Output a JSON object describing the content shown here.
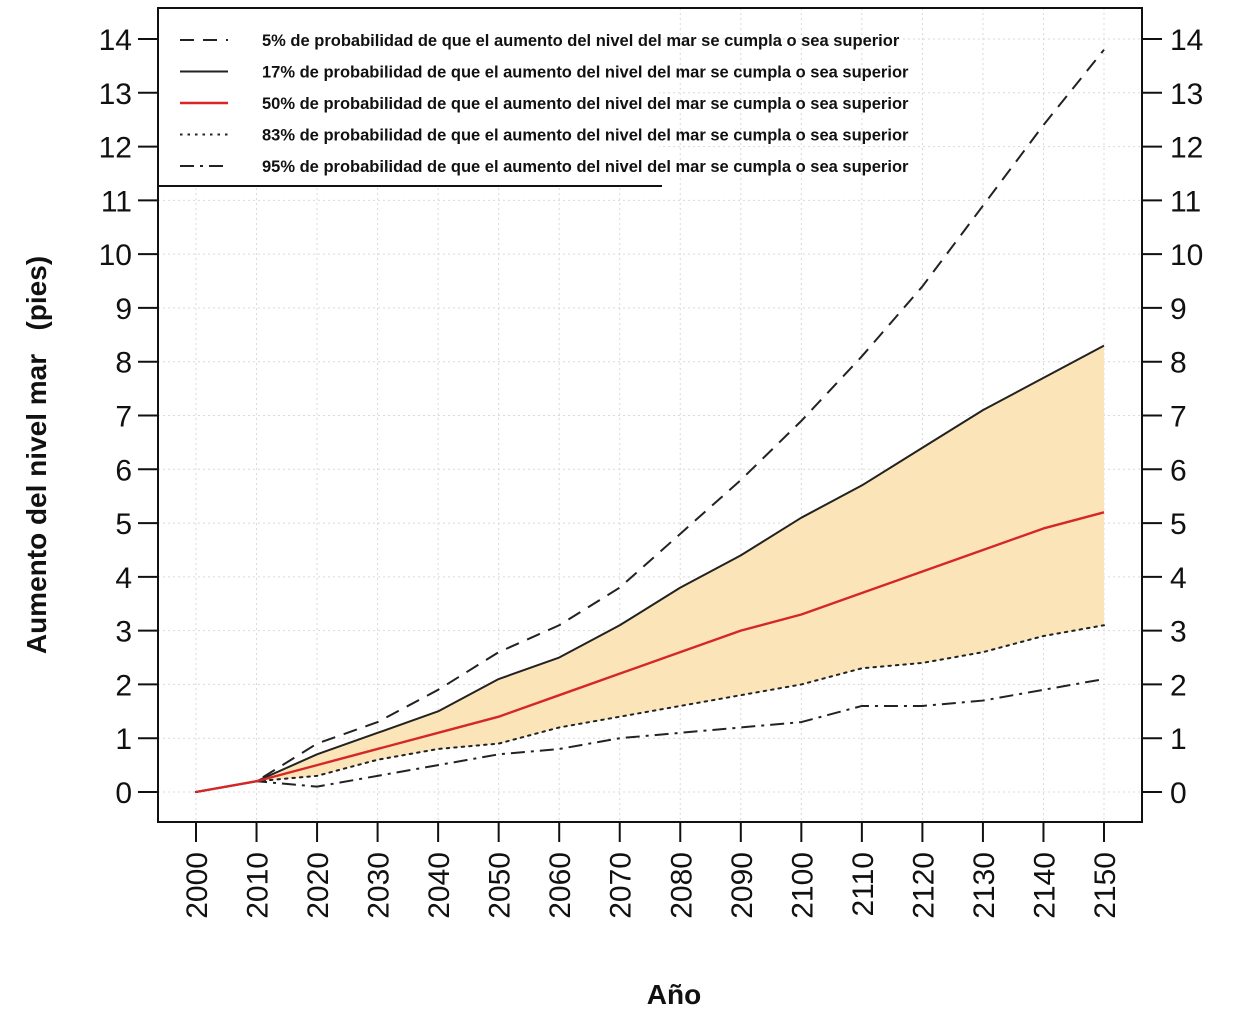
{
  "chart_data": {
    "type": "line",
    "title": "",
    "xlabel": "Año",
    "ylabel": "Aumento del nivel mar   (pies)",
    "xlim": [
      2000,
      2150
    ],
    "ylim": [
      0,
      14
    ],
    "x_ticks": [
      2000,
      2010,
      2020,
      2030,
      2040,
      2050,
      2060,
      2070,
      2080,
      2090,
      2100,
      2110,
      2120,
      2130,
      2140,
      2150
    ],
    "y_ticks": [
      0,
      1,
      2,
      3,
      4,
      5,
      6,
      7,
      8,
      9,
      10,
      11,
      12,
      13,
      14
    ],
    "grid": true,
    "legend_position": "top-left",
    "shaded_band": {
      "between": [
        "17%",
        "83%"
      ],
      "color": "#fbe5b8"
    },
    "x": [
      2000,
      2010,
      2020,
      2030,
      2040,
      2050,
      2060,
      2070,
      2080,
      2090,
      2100,
      2110,
      2120,
      2130,
      2140,
      2150
    ],
    "series": [
      {
        "name": "5% de probabilidad de que el aumento del nivel del mar se cumpla o sea superior",
        "style": "dashed",
        "color": "#222222",
        "values": [
          0,
          0.2,
          0.9,
          1.3,
          1.9,
          2.6,
          3.1,
          3.8,
          4.8,
          5.8,
          6.9,
          8.1,
          9.4,
          10.9,
          12.4,
          13.8
        ]
      },
      {
        "name": "17% de probabilidad de que el aumento del nivel del mar se cumpla o sea  superior",
        "style": "solid",
        "color": "#222222",
        "values": [
          0,
          0.2,
          0.7,
          1.1,
          1.5,
          2.1,
          2.5,
          3.1,
          3.8,
          4.4,
          5.1,
          5.7,
          6.4,
          7.1,
          7.7,
          8.3
        ]
      },
      {
        "name": "50% de probabilidad de que el aumento del nivel del mar se cumpla o sea superior",
        "style": "solid",
        "color": "#d62728",
        "values": [
          0,
          0.2,
          0.5,
          0.8,
          1.1,
          1.4,
          1.8,
          2.2,
          2.6,
          3.0,
          3.3,
          3.7,
          4.1,
          4.5,
          4.9,
          5.2
        ]
      },
      {
        "name": "83% de probabilidad de que el aumento del nivel del mar se cumpla o sea superior",
        "style": "dotted",
        "color": "#222222",
        "values": [
          0,
          0.2,
          0.3,
          0.6,
          0.8,
          0.9,
          1.2,
          1.4,
          1.6,
          1.8,
          2.0,
          2.3,
          2.4,
          2.6,
          2.9,
          3.1
        ]
      },
      {
        "name": "95% de probabilidad de que el aumento del nivel del mar se cumpla o sea superior",
        "style": "dashdot",
        "color": "#222222",
        "values": [
          0,
          0.2,
          0.1,
          0.3,
          0.5,
          0.7,
          0.8,
          1.0,
          1.1,
          1.2,
          1.3,
          1.6,
          1.6,
          1.7,
          1.9,
          2.1
        ]
      }
    ]
  }
}
